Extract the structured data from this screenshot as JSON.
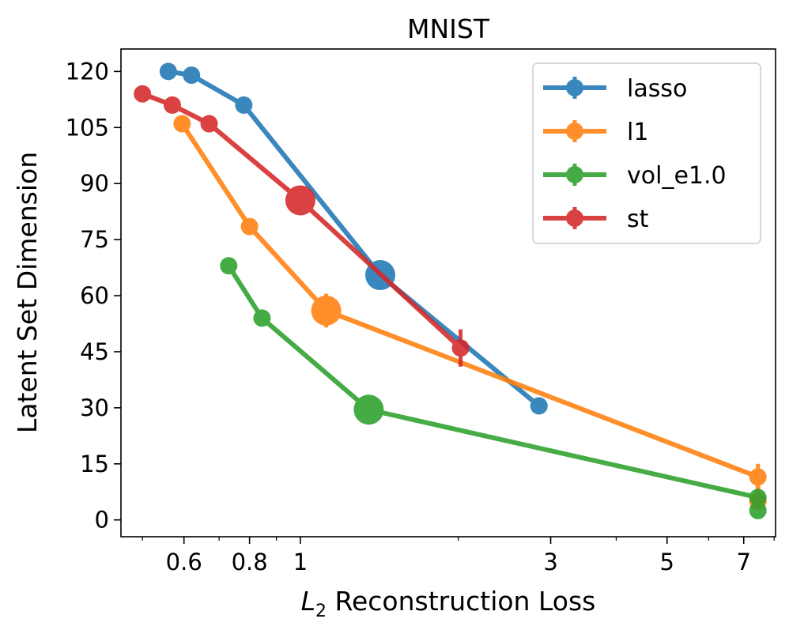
{
  "chart_data": {
    "type": "line",
    "title": "MNIST",
    "xlabel": "L",
    "xlabel_sub": "2",
    "xlabel_rest": " Reconstruction Loss",
    "ylabel": "Latent Set Dimension",
    "xscale": "log",
    "xlim": [
      0.455,
      8.05
    ],
    "ylim": [
      -4.5,
      126
    ],
    "x_ticks": [
      {
        "value": 0.6,
        "label": "0.6"
      },
      {
        "value": 0.8,
        "label": "0.8"
      },
      {
        "value": 1,
        "label": "1"
      },
      {
        "value": 3,
        "label": "3"
      },
      {
        "value": 5,
        "label": "5"
      },
      {
        "value": 7,
        "label": "7"
      }
    ],
    "x_minor_ticks": [
      0.5,
      0.7,
      0.9,
      2,
      4,
      6,
      8
    ],
    "y_ticks": [
      {
        "value": 0,
        "label": "0"
      },
      {
        "value": 15,
        "label": "15"
      },
      {
        "value": 30,
        "label": "30"
      },
      {
        "value": 45,
        "label": "45"
      },
      {
        "value": 60,
        "label": "60"
      },
      {
        "value": 75,
        "label": "75"
      },
      {
        "value": 90,
        "label": "90"
      },
      {
        "value": 105,
        "label": "105"
      },
      {
        "value": 120,
        "label": "120"
      }
    ],
    "legend_position": "top-right",
    "series": [
      {
        "name": "lasso",
        "color": "#1f77b4",
        "points": [
          {
            "x": 0.56,
            "y": 120
          },
          {
            "x": 0.62,
            "y": 119
          },
          {
            "x": 0.78,
            "y": 111
          },
          {
            "x": 1.42,
            "y": 65.5,
            "highlight": true
          },
          {
            "x": 2.85,
            "y": 30.5
          }
        ],
        "errors": []
      },
      {
        "name": "l1",
        "color": "#ff7f0e",
        "points": [
          {
            "x": 0.595,
            "y": 106
          },
          {
            "x": 0.8,
            "y": 78.5
          },
          {
            "x": 1.12,
            "y": 56,
            "highlight": true
          },
          {
            "x": 7.45,
            "y": 11.5
          },
          {
            "x": 7.45,
            "y": 5
          }
        ],
        "errors": [
          {
            "x": 1.12,
            "y": 56,
            "dy": 4.5
          },
          {
            "x": 7.45,
            "y": 11.5,
            "dy": 3.5
          }
        ]
      },
      {
        "name": "vol_e1.0",
        "color": "#2ca02c",
        "points": [
          {
            "x": 0.73,
            "y": 68
          },
          {
            "x": 0.845,
            "y": 54
          },
          {
            "x": 1.35,
            "y": 29.5,
            "highlight": true
          },
          {
            "x": 7.45,
            "y": 6
          },
          {
            "x": 7.45,
            "y": 2.5
          }
        ],
        "errors": [
          {
            "x": 1.35,
            "y": 29.5,
            "dx": 0.08
          }
        ]
      },
      {
        "name": "st",
        "color": "#d62728",
        "points": [
          {
            "x": 0.5,
            "y": 114
          },
          {
            "x": 0.57,
            "y": 111
          },
          {
            "x": 0.67,
            "y": 106
          },
          {
            "x": 1.0,
            "y": 85.5,
            "highlight": true
          },
          {
            "x": 2.02,
            "y": 46
          }
        ],
        "errors": [
          {
            "x": 2.02,
            "y": 46,
            "dy": 5
          }
        ]
      }
    ]
  }
}
